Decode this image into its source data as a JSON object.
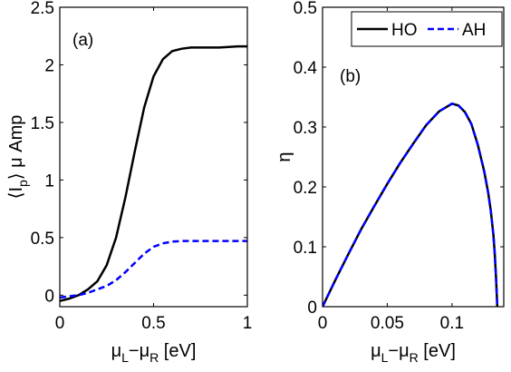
{
  "chart_data": [
    {
      "type": "line",
      "panel_label": "(a)",
      "ylabel": "⟨I_p⟩ μ Amp",
      "xlabel": "μ_L−μ_R [eV]",
      "xlim": [
        0,
        1
      ],
      "ylim": [
        -0.1,
        2.5
      ],
      "xticks": [
        0,
        0.5,
        1
      ],
      "xtick_labels": [
        "0",
        "0.5",
        "1"
      ],
      "yticks": [
        0,
        0.5,
        1,
        1.5,
        2,
        2.5
      ],
      "ytick_labels": [
        "0",
        "0.5",
        "1",
        "1.5",
        "2",
        "2.5"
      ],
      "grid": false,
      "series": [
        {
          "name": "HO",
          "color": "#000000",
          "dash": "solid",
          "x": [
            0,
            0.05,
            0.1,
            0.15,
            0.2,
            0.25,
            0.3,
            0.35,
            0.4,
            0.45,
            0.5,
            0.55,
            0.6,
            0.65,
            0.7,
            0.75,
            0.8,
            0.85,
            0.9,
            0.95,
            1.0
          ],
          "values": [
            -0.05,
            -0.03,
            0.0,
            0.05,
            0.12,
            0.26,
            0.5,
            0.85,
            1.25,
            1.63,
            1.9,
            2.05,
            2.12,
            2.14,
            2.15,
            2.15,
            2.15,
            2.15,
            2.155,
            2.16,
            2.16
          ]
        },
        {
          "name": "AH",
          "color": "#0000ff",
          "dash": "dashed",
          "x": [
            0,
            0.05,
            0.1,
            0.15,
            0.2,
            0.25,
            0.3,
            0.35,
            0.4,
            0.45,
            0.5,
            0.55,
            0.6,
            0.65,
            0.7,
            0.75,
            0.8,
            0.85,
            0.9,
            0.95,
            1.0
          ],
          "values": [
            -0.02,
            -0.01,
            0.0,
            0.02,
            0.05,
            0.08,
            0.13,
            0.2,
            0.28,
            0.36,
            0.42,
            0.45,
            0.465,
            0.47,
            0.47,
            0.47,
            0.47,
            0.47,
            0.47,
            0.47,
            0.47
          ]
        }
      ]
    },
    {
      "type": "line",
      "panel_label": "(b)",
      "ylabel": "η",
      "xlabel": "μ_L−μ_R [eV]",
      "xlim": [
        0,
        0.14
      ],
      "ylim": [
        0,
        0.5
      ],
      "xticks": [
        0,
        0.05,
        0.1
      ],
      "xtick_labels": [
        "0",
        "0.05",
        "0.1"
      ],
      "yticks": [
        0,
        0.1,
        0.2,
        0.3,
        0.4,
        0.5
      ],
      "ytick_labels": [
        "0",
        "0.1",
        "0.2",
        "0.3",
        "0.4",
        "0.5"
      ],
      "grid": false,
      "legend_position": "top-right",
      "series": [
        {
          "name": "HO",
          "color": "#000000",
          "dash": "solid",
          "x": [
            0,
            0.01,
            0.02,
            0.03,
            0.04,
            0.05,
            0.06,
            0.07,
            0.08,
            0.09,
            0.1,
            0.105,
            0.11,
            0.115,
            0.12,
            0.125,
            0.128,
            0.13,
            0.132,
            0.133,
            0.134,
            0.135
          ],
          "values": [
            0,
            0.045,
            0.088,
            0.13,
            0.168,
            0.205,
            0.24,
            0.272,
            0.303,
            0.326,
            0.339,
            0.336,
            0.325,
            0.305,
            0.27,
            0.225,
            0.19,
            0.16,
            0.12,
            0.09,
            0.05,
            0
          ]
        },
        {
          "name": "AH",
          "color": "#0000ff",
          "dash": "dashed",
          "x": [
            0,
            0.01,
            0.02,
            0.03,
            0.04,
            0.05,
            0.06,
            0.07,
            0.08,
            0.09,
            0.1,
            0.105,
            0.11,
            0.115,
            0.12,
            0.125,
            0.128,
            0.13,
            0.132,
            0.133,
            0.134,
            0.135
          ],
          "values": [
            0,
            0.045,
            0.088,
            0.13,
            0.168,
            0.205,
            0.24,
            0.272,
            0.303,
            0.326,
            0.339,
            0.336,
            0.325,
            0.305,
            0.27,
            0.225,
            0.19,
            0.16,
            0.12,
            0.09,
            0.05,
            0
          ]
        }
      ]
    }
  ]
}
